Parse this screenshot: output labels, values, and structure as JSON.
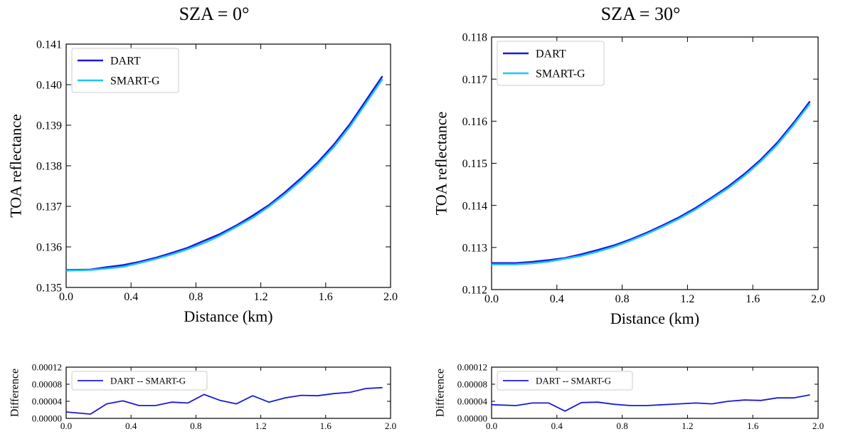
{
  "chart_data": [
    {
      "type": "line",
      "title": "SZA = 0°",
      "xlabel": "Distance (km)",
      "ylabel": "TOA reflectance",
      "x": [
        0.0,
        0.15,
        0.25,
        0.35,
        0.45,
        0.55,
        0.65,
        0.75,
        0.85,
        0.95,
        1.05,
        1.15,
        1.25,
        1.35,
        1.45,
        1.55,
        1.65,
        1.75,
        1.85,
        1.95
      ],
      "series": [
        {
          "name": "DART",
          "color": "#1a1ad8",
          "values": [
            0.13543,
            0.13544,
            0.1355,
            0.13555,
            0.13563,
            0.13573,
            0.13585,
            0.13598,
            0.13615,
            0.13632,
            0.13653,
            0.13677,
            0.13703,
            0.13735,
            0.1377,
            0.13808,
            0.13852,
            0.13903,
            0.13962,
            0.14021
          ]
        },
        {
          "name": "SMART-G",
          "color": "#1ec3ff",
          "values": [
            0.135415,
            0.13543,
            0.135466,
            0.135509,
            0.1356,
            0.1357,
            0.135812,
            0.135944,
            0.136094,
            0.136278,
            0.136496,
            0.136717,
            0.136992,
            0.137302,
            0.137646,
            0.138027,
            0.138462,
            0.138969,
            0.13955,
            0.140138
          ]
        }
      ],
      "xlim": [
        0,
        2
      ],
      "xticks": [
        {
          "value": 0,
          "label": "0.0"
        },
        0.4,
        0.8,
        1.2,
        1.6,
        {
          "value": 2,
          "label": "2.0"
        }
      ],
      "ylim": [
        0.135,
        0.141
      ],
      "yticks": [
        0.135,
        0.136,
        0.137,
        0.138,
        0.139,
        {
          "value": 0.14,
          "label": "0.140"
        },
        0.141
      ],
      "legend": "upper left"
    },
    {
      "type": "line",
      "title": "SZA = 30°",
      "xlabel": "Distance (km)",
      "ylabel": "TOA reflectance",
      "x": [
        0.0,
        0.15,
        0.25,
        0.35,
        0.45,
        0.55,
        0.65,
        0.75,
        0.85,
        0.95,
        1.05,
        1.15,
        1.25,
        1.35,
        1.45,
        1.55,
        1.65,
        1.75,
        1.85,
        1.95
      ],
      "series": [
        {
          "name": "DART",
          "color": "#1a1ad8",
          "values": [
            0.11263,
            0.11263,
            0.11266,
            0.1127,
            0.11275,
            0.11284,
            0.11294,
            0.11305,
            0.11319,
            0.11335,
            0.11353,
            0.11372,
            0.11394,
            0.11419,
            0.11445,
            0.11475,
            0.11509,
            0.11549,
            0.11596,
            0.11647
          ]
        },
        {
          "name": "SMART-G",
          "color": "#1ec3ff",
          "values": [
            0.112598,
            0.1126,
            0.112624,
            0.112664,
            0.112733,
            0.112803,
            0.112902,
            0.113017,
            0.11316,
            0.11332,
            0.113498,
            0.113686,
            0.113904,
            0.114156,
            0.11441,
            0.114707,
            0.115048,
            0.115442,
            0.115912,
            0.116415
          ]
        }
      ],
      "xlim": [
        0,
        2
      ],
      "xticks": [
        {
          "value": 0,
          "label": "0.0"
        },
        0.4,
        0.8,
        1.2,
        1.6,
        {
          "value": 2,
          "label": "2.0"
        }
      ],
      "ylim": [
        0.112,
        0.118
      ],
      "yticks": [
        0.112,
        0.113,
        0.114,
        0.115,
        0.116,
        0.117,
        0.118
      ],
      "legend": "upper left"
    },
    {
      "type": "line",
      "ylabel": "Difference",
      "x": [
        0.0,
        0.15,
        0.25,
        0.35,
        0.45,
        0.55,
        0.65,
        0.75,
        0.85,
        0.95,
        1.05,
        1.15,
        1.25,
        1.35,
        1.45,
        1.55,
        1.65,
        1.75,
        1.85,
        1.95
      ],
      "series": [
        {
          "name": "DART -- SMART-G",
          "color": "#1a1ad8",
          "values": [
            1.5e-05,
            1e-05,
            3.4e-05,
            4.1e-05,
            3e-05,
            3e-05,
            3.8e-05,
            3.6e-05,
            5.6e-05,
            4.2e-05,
            3.4e-05,
            5.3e-05,
            3.8e-05,
            4.8e-05,
            5.4e-05,
            5.3e-05,
            5.8e-05,
            6.1e-05,
            7e-05,
            7.2e-05
          ]
        }
      ],
      "xlim": [
        0,
        2
      ],
      "xticks": [
        {
          "value": 0,
          "label": "0.0"
        },
        0.4,
        0.8,
        1.2,
        1.6,
        {
          "value": 2,
          "label": "2.0"
        }
      ],
      "ylim": [
        0,
        0.00012
      ],
      "yticks": [
        {
          "value": 0,
          "label": "0.00000"
        },
        {
          "value": 4e-05,
          "label": "0.00004"
        },
        {
          "value": 8e-05,
          "label": "0.00008"
        },
        {
          "value": 0.00012,
          "label": "0.00012"
        }
      ],
      "legend": "upper left"
    },
    {
      "type": "line",
      "ylabel": "Difference",
      "x": [
        0.0,
        0.15,
        0.25,
        0.35,
        0.45,
        0.55,
        0.65,
        0.75,
        0.85,
        0.95,
        1.05,
        1.15,
        1.25,
        1.35,
        1.45,
        1.55,
        1.65,
        1.75,
        1.85,
        1.95
      ],
      "series": [
        {
          "name": "DART -- SMART-G",
          "color": "#1a1ad8",
          "values": [
            3.2e-05,
            3e-05,
            3.6e-05,
            3.6e-05,
            1.7e-05,
            3.7e-05,
            3.8e-05,
            3.3e-05,
            3e-05,
            3e-05,
            3.2e-05,
            3.4e-05,
            3.6e-05,
            3.4e-05,
            4e-05,
            4.3e-05,
            4.2e-05,
            4.8e-05,
            4.8e-05,
            5.5e-05
          ]
        }
      ],
      "xlim": [
        0,
        2
      ],
      "xticks": [
        {
          "value": 0,
          "label": "0.0"
        },
        0.4,
        0.8,
        1.2,
        1.6,
        {
          "value": 2,
          "label": "2.0"
        }
      ],
      "ylim": [
        0,
        0.00012
      ],
      "yticks": [
        {
          "value": 0,
          "label": "0.00000"
        },
        {
          "value": 4e-05,
          "label": "0.00004"
        },
        {
          "value": 8e-05,
          "label": "0.00008"
        },
        {
          "value": 0.00012,
          "label": "0.00012"
        }
      ],
      "legend": "upper left"
    }
  ]
}
